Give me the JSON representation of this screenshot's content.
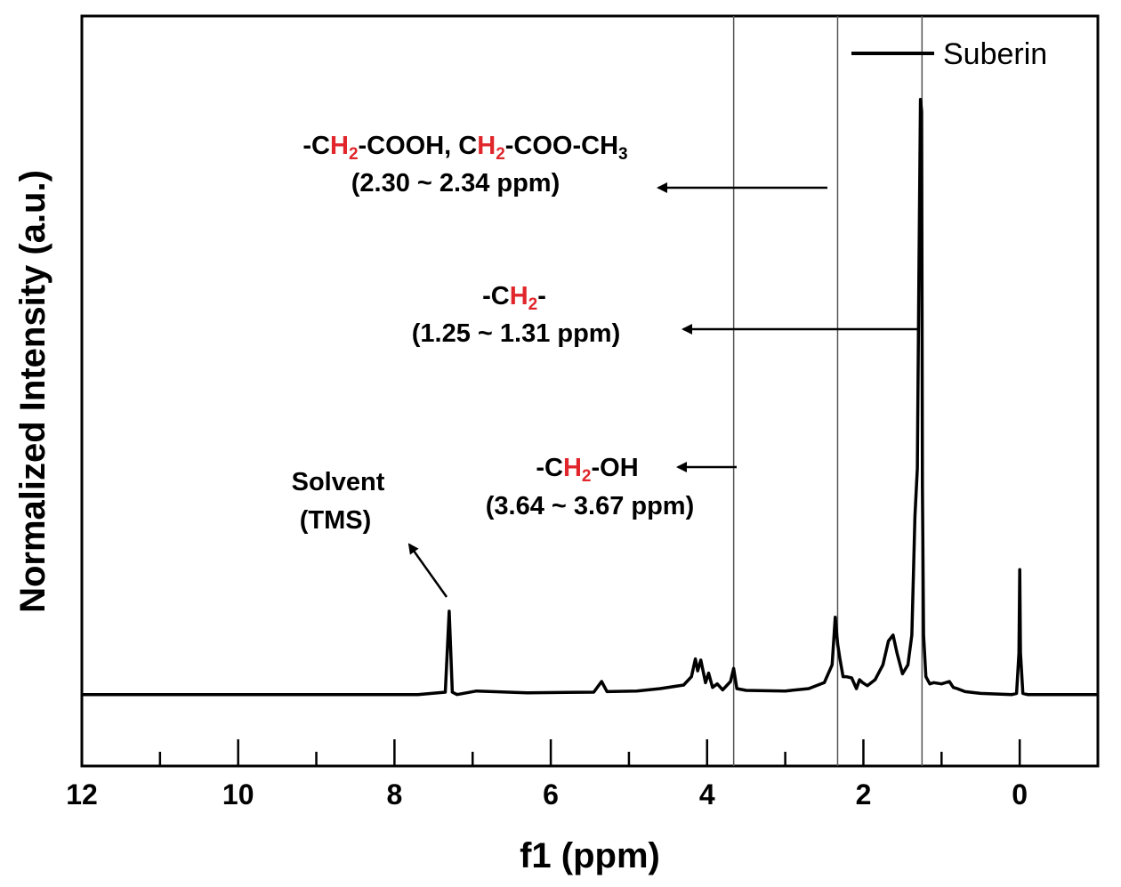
{
  "chart_data": {
    "type": "line",
    "title": "",
    "xlabel": "f1 (ppm)",
    "ylabel": "Normalized Intensity (a.u.)",
    "xlim": [
      12,
      -1
    ],
    "ylim": [
      -0.12,
      1.14
    ],
    "x_reversed": true,
    "x_ticks": [
      12,
      10,
      8,
      6,
      4,
      2,
      0
    ],
    "x_minor_ticks": [
      11,
      9,
      7,
      5,
      3,
      1
    ],
    "legend": {
      "placement": "top-right",
      "entries": [
        "Suberin"
      ]
    },
    "series": [
      {
        "name": "Suberin",
        "color": "#000000",
        "x": [
          12.0,
          9.0,
          7.7,
          7.35,
          7.3,
          7.26,
          7.2,
          6.95,
          6.3,
          5.45,
          5.35,
          5.28,
          4.9,
          4.6,
          4.3,
          4.2,
          4.15,
          4.12,
          4.08,
          4.02,
          3.98,
          3.93,
          3.87,
          3.8,
          3.7,
          3.66,
          3.62,
          3.5,
          3.0,
          2.7,
          2.5,
          2.4,
          2.36,
          2.33,
          2.3,
          2.26,
          2.22,
          2.15,
          2.09,
          2.05,
          2.01,
          1.95,
          1.85,
          1.75,
          1.68,
          1.62,
          1.57,
          1.5,
          1.43,
          1.38,
          1.34,
          1.31,
          1.29,
          1.27,
          1.255,
          1.245,
          1.23,
          1.2,
          1.15,
          1.1,
          1.0,
          0.9,
          0.85,
          0.8,
          0.7,
          0.5,
          0.1,
          0.04,
          0.01,
          0.0,
          -0.01,
          -0.04,
          -0.1,
          -1.0
        ],
        "y": [
          0.0,
          0.0,
          0.0,
          0.004,
          0.14,
          0.004,
          0.0,
          0.006,
          0.003,
          0.004,
          0.022,
          0.005,
          0.006,
          0.01,
          0.016,
          0.03,
          0.06,
          0.04,
          0.058,
          0.02,
          0.036,
          0.012,
          0.018,
          0.008,
          0.022,
          0.044,
          0.01,
          0.007,
          0.006,
          0.01,
          0.02,
          0.05,
          0.13,
          0.085,
          0.06,
          0.03,
          0.03,
          0.028,
          0.01,
          0.025,
          0.02,
          0.015,
          0.025,
          0.05,
          0.09,
          0.1,
          0.07,
          0.035,
          0.05,
          0.1,
          0.3,
          0.38,
          0.7,
          1.0,
          0.98,
          0.35,
          0.1,
          0.03,
          0.018,
          0.02,
          0.018,
          0.022,
          0.012,
          0.01,
          0.005,
          0.002,
          0.0,
          0.002,
          0.07,
          0.21,
          0.07,
          0.002,
          0.0,
          0.0
        ]
      }
    ],
    "reference_lines_ppm": [
      3.66,
      2.33,
      1.25
    ],
    "annotations": [
      {
        "lines": [
          "-CH2-COOH, CH2-COO-CH3",
          "(2.30 ~ 2.34 ppm)"
        ],
        "range": [
          2.3,
          2.34
        ]
      },
      {
        "lines": [
          "-CH2-",
          "(1.25 ~ 1.31 ppm)"
        ],
        "range": [
          1.25,
          1.31
        ]
      },
      {
        "lines": [
          "-CH2-OH",
          "(3.64 ~ 3.67 ppm)"
        ],
        "range": [
          3.64,
          3.67
        ]
      },
      {
        "lines": [
          "Solvent",
          "(TMS)"
        ]
      }
    ],
    "highlight_color": "#e0262b"
  }
}
